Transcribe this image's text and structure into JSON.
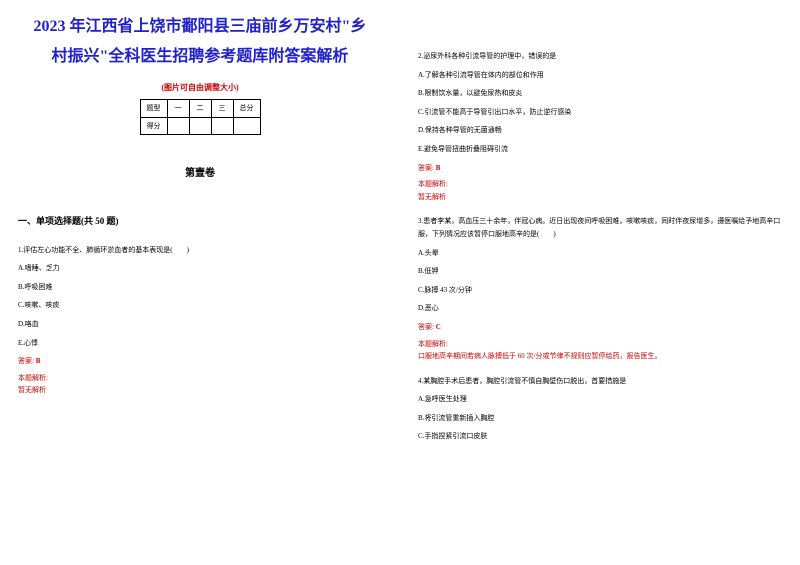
{
  "title_line1": "2023 年江西省上饶市鄱阳县三庙前乡万安村\"乡",
  "title_line2": "村振兴\"全科医生招聘参考题库附答案解析",
  "image_note": "(图片可自由调整大小)",
  "table": {
    "headers": [
      "题型",
      "一",
      "二",
      "三",
      "总分"
    ],
    "row2_label": "得分"
  },
  "volume_title": "第壹卷",
  "section_title": "一、单项选择题(共 50 题)",
  "q1": {
    "text": "1.评估左心功能不全、肺循环淤血者的基本表现是(　　)",
    "opts": [
      "A.嗜睡、乏力",
      "B.呼吸困难",
      "C.咳嗽、咳痰",
      "D.咯血",
      "E.心悸"
    ],
    "answer_label": "答案:",
    "answer": "B",
    "analysis_label": "本题解析:",
    "analysis": "暂无解析"
  },
  "q2": {
    "text": "2.泌尿外科各种引流导管的护理中，错误的是",
    "opts": [
      "A.了解各种引流导管在体内的部位和作用",
      "B.限制饮水量，以避免尿热和皮炎",
      "C.引流管不能高于导管引出口水平，防止逆行感染",
      "D.保持各种导管的无菌通畅",
      "E.避免导管扭曲折叠阻碍引流"
    ],
    "answer_label": "答案:",
    "answer": "B",
    "analysis_label": "本题解析:",
    "analysis": "暂无解析"
  },
  "q3": {
    "text": "3.患者李某，高血压三十余年，伴冠心病。近日出现夜间呼吸困难，咳嗽咳痰，同时伴夜尿增多，遵医嘱给予地高辛口服，下列情况应该暂停口服地高辛的是(　　)",
    "opts": [
      "A.头晕",
      "B.低钾",
      "C.脉搏 43 次/分钟",
      "D.恶心"
    ],
    "answer_label": "答案:",
    "answer": "C",
    "analysis_label": "本题解析:",
    "analysis": "口服地高辛期间若病人脉搏低于 60 次/分或节律不规则应暂停给药，报告医生。"
  },
  "q4": {
    "text": "4.某胸腔手术后患者，胸腔引流管不慎自胸壁伤口脱出，首要措施是",
    "opts": [
      "A.急呼医生处理",
      "B.将引流管重新插入胸腔",
      "C.手指捏紧引流口皮肤"
    ]
  },
  "colors": {
    "title": "#2020cc",
    "red": "#cc0000",
    "black": "#000000",
    "bg": "#ffffff"
  }
}
